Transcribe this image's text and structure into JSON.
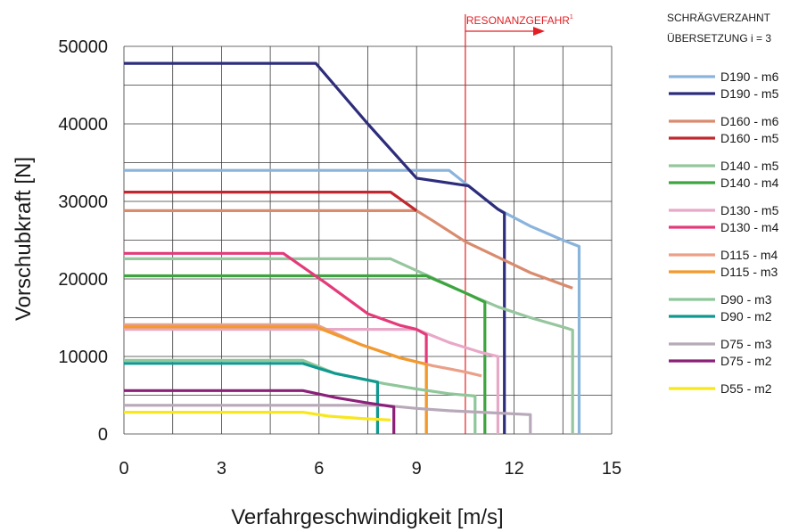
{
  "chart_data": {
    "type": "line",
    "xlabel": "Verfahrgeschwindigkeit [m/s]",
    "ylabel": "Vorschubkraft [N]",
    "xlim": [
      0,
      15
    ],
    "ylim": [
      0,
      50000
    ],
    "xticks": [
      "0",
      "3",
      "6",
      "9",
      "12",
      "15"
    ],
    "yticks": [
      "0",
      "10000",
      "20000",
      "30000",
      "40000",
      "50000"
    ],
    "grid": true,
    "legend_title": [
      "SCHRÄGVERZAHNT",
      "ÜBERSETZUNG i = 3"
    ],
    "legend_position": "right",
    "annotation": {
      "text": "RESONANZGEFAHR",
      "superscript": "1",
      "x": 10.5,
      "color": "#e31e24"
    },
    "series": [
      {
        "name": "D190 - m6",
        "color": "#8ab4dc",
        "points": [
          [
            0,
            34000
          ],
          [
            10.0,
            34000
          ],
          [
            10.6,
            32000
          ],
          [
            11.5,
            29000
          ],
          [
            12.5,
            26800
          ],
          [
            13.5,
            25000
          ],
          [
            14.0,
            24200
          ],
          [
            14.0,
            0
          ]
        ]
      },
      {
        "name": "D190 - m5",
        "color": "#2d2d7c",
        "points": [
          [
            0,
            47800
          ],
          [
            5.9,
            47800
          ],
          [
            7.5,
            40000
          ],
          [
            9.0,
            33000
          ],
          [
            10.6,
            32000
          ],
          [
            11.5,
            29000
          ],
          [
            11.7,
            28500
          ],
          [
            11.7,
            0
          ]
        ]
      },
      {
        "name": "D160 - m6",
        "color": "#d98b6e",
        "points": [
          [
            0,
            28800
          ],
          [
            9.0,
            28800
          ],
          [
            9.5,
            27500
          ],
          [
            10.5,
            24800
          ],
          [
            11.5,
            22800
          ],
          [
            12.5,
            20800
          ],
          [
            13.8,
            18800
          ]
        ]
      },
      {
        "name": "D160 - m5",
        "color": "#c0282f",
        "points": [
          [
            0,
            31200
          ],
          [
            8.2,
            31200
          ],
          [
            9.0,
            28800
          ]
        ]
      },
      {
        "name": "D140 - m5",
        "color": "#96c69e",
        "points": [
          [
            0,
            22600
          ],
          [
            8.2,
            22600
          ],
          [
            9.3,
            20500
          ],
          [
            10.5,
            18200
          ],
          [
            11.5,
            16400
          ],
          [
            12.5,
            15000
          ],
          [
            13.5,
            13800
          ],
          [
            13.8,
            13400
          ],
          [
            13.8,
            0
          ]
        ]
      },
      {
        "name": "D140 - m4",
        "color": "#3da53f",
        "points": [
          [
            0,
            20400
          ],
          [
            9.3,
            20400
          ],
          [
            10.5,
            18200
          ],
          [
            11.1,
            17000
          ],
          [
            11.1,
            0
          ]
        ]
      },
      {
        "name": "D130 - m5",
        "color": "#e8a8c8",
        "points": [
          [
            0,
            13500
          ],
          [
            9.0,
            13500
          ],
          [
            10.0,
            11800
          ],
          [
            11.0,
            10500
          ],
          [
            11.5,
            10000
          ],
          [
            11.5,
            0
          ]
        ]
      },
      {
        "name": "D130 - m4",
        "color": "#e33b7a",
        "points": [
          [
            0,
            23300
          ],
          [
            4.9,
            23300
          ],
          [
            6.2,
            19500
          ],
          [
            7.5,
            15500
          ],
          [
            8.5,
            14000
          ],
          [
            9.0,
            13500
          ],
          [
            9.3,
            12800
          ],
          [
            9.3,
            0
          ]
        ]
      },
      {
        "name": "D115 - m4",
        "color": "#eaa088",
        "points": [
          [
            0,
            14100
          ],
          [
            5.9,
            14100
          ],
          [
            7.3,
            11500
          ],
          [
            8.5,
            9800
          ],
          [
            9.5,
            8800
          ],
          [
            10.5,
            8000
          ],
          [
            11.0,
            7500
          ]
        ]
      },
      {
        "name": "D115 - m3",
        "color": "#f29a2e",
        "points": [
          [
            0,
            13800
          ],
          [
            5.9,
            13800
          ],
          [
            7.3,
            11500
          ],
          [
            8.5,
            9800
          ],
          [
            9.3,
            9000
          ],
          [
            9.3,
            0
          ]
        ]
      },
      {
        "name": "D90 - m3",
        "color": "#8fc79a",
        "points": [
          [
            0,
            9500
          ],
          [
            5.5,
            9500
          ],
          [
            6.5,
            7800
          ],
          [
            8.0,
            6500
          ],
          [
            9.0,
            5800
          ],
          [
            10.0,
            5200
          ],
          [
            10.8,
            4900
          ],
          [
            10.8,
            0
          ]
        ]
      },
      {
        "name": "D90 - m2",
        "color": "#10998f",
        "points": [
          [
            0,
            9100
          ],
          [
            5.5,
            9100
          ],
          [
            6.5,
            7800
          ],
          [
            7.8,
            6700
          ],
          [
            7.8,
            0
          ]
        ]
      },
      {
        "name": "D75 - m3",
        "color": "#b7a9b9",
        "points": [
          [
            0,
            3700
          ],
          [
            8.0,
            3700
          ],
          [
            9.0,
            3300
          ],
          [
            10.0,
            3000
          ],
          [
            11.5,
            2700
          ],
          [
            12.5,
            2500
          ],
          [
            12.5,
            0
          ]
        ]
      },
      {
        "name": "D75 - m2",
        "color": "#8b2079",
        "points": [
          [
            0,
            5600
          ],
          [
            5.5,
            5600
          ],
          [
            6.5,
            4700
          ],
          [
            7.5,
            4000
          ],
          [
            8.3,
            3500
          ],
          [
            8.3,
            0
          ]
        ]
      },
      {
        "name": "D55 - m2",
        "color": "#f8e71c",
        "points": [
          [
            0,
            2800
          ],
          [
            5.5,
            2800
          ],
          [
            6.3,
            2300
          ],
          [
            7.3,
            2000
          ],
          [
            8.2,
            1800
          ]
        ]
      }
    ]
  }
}
